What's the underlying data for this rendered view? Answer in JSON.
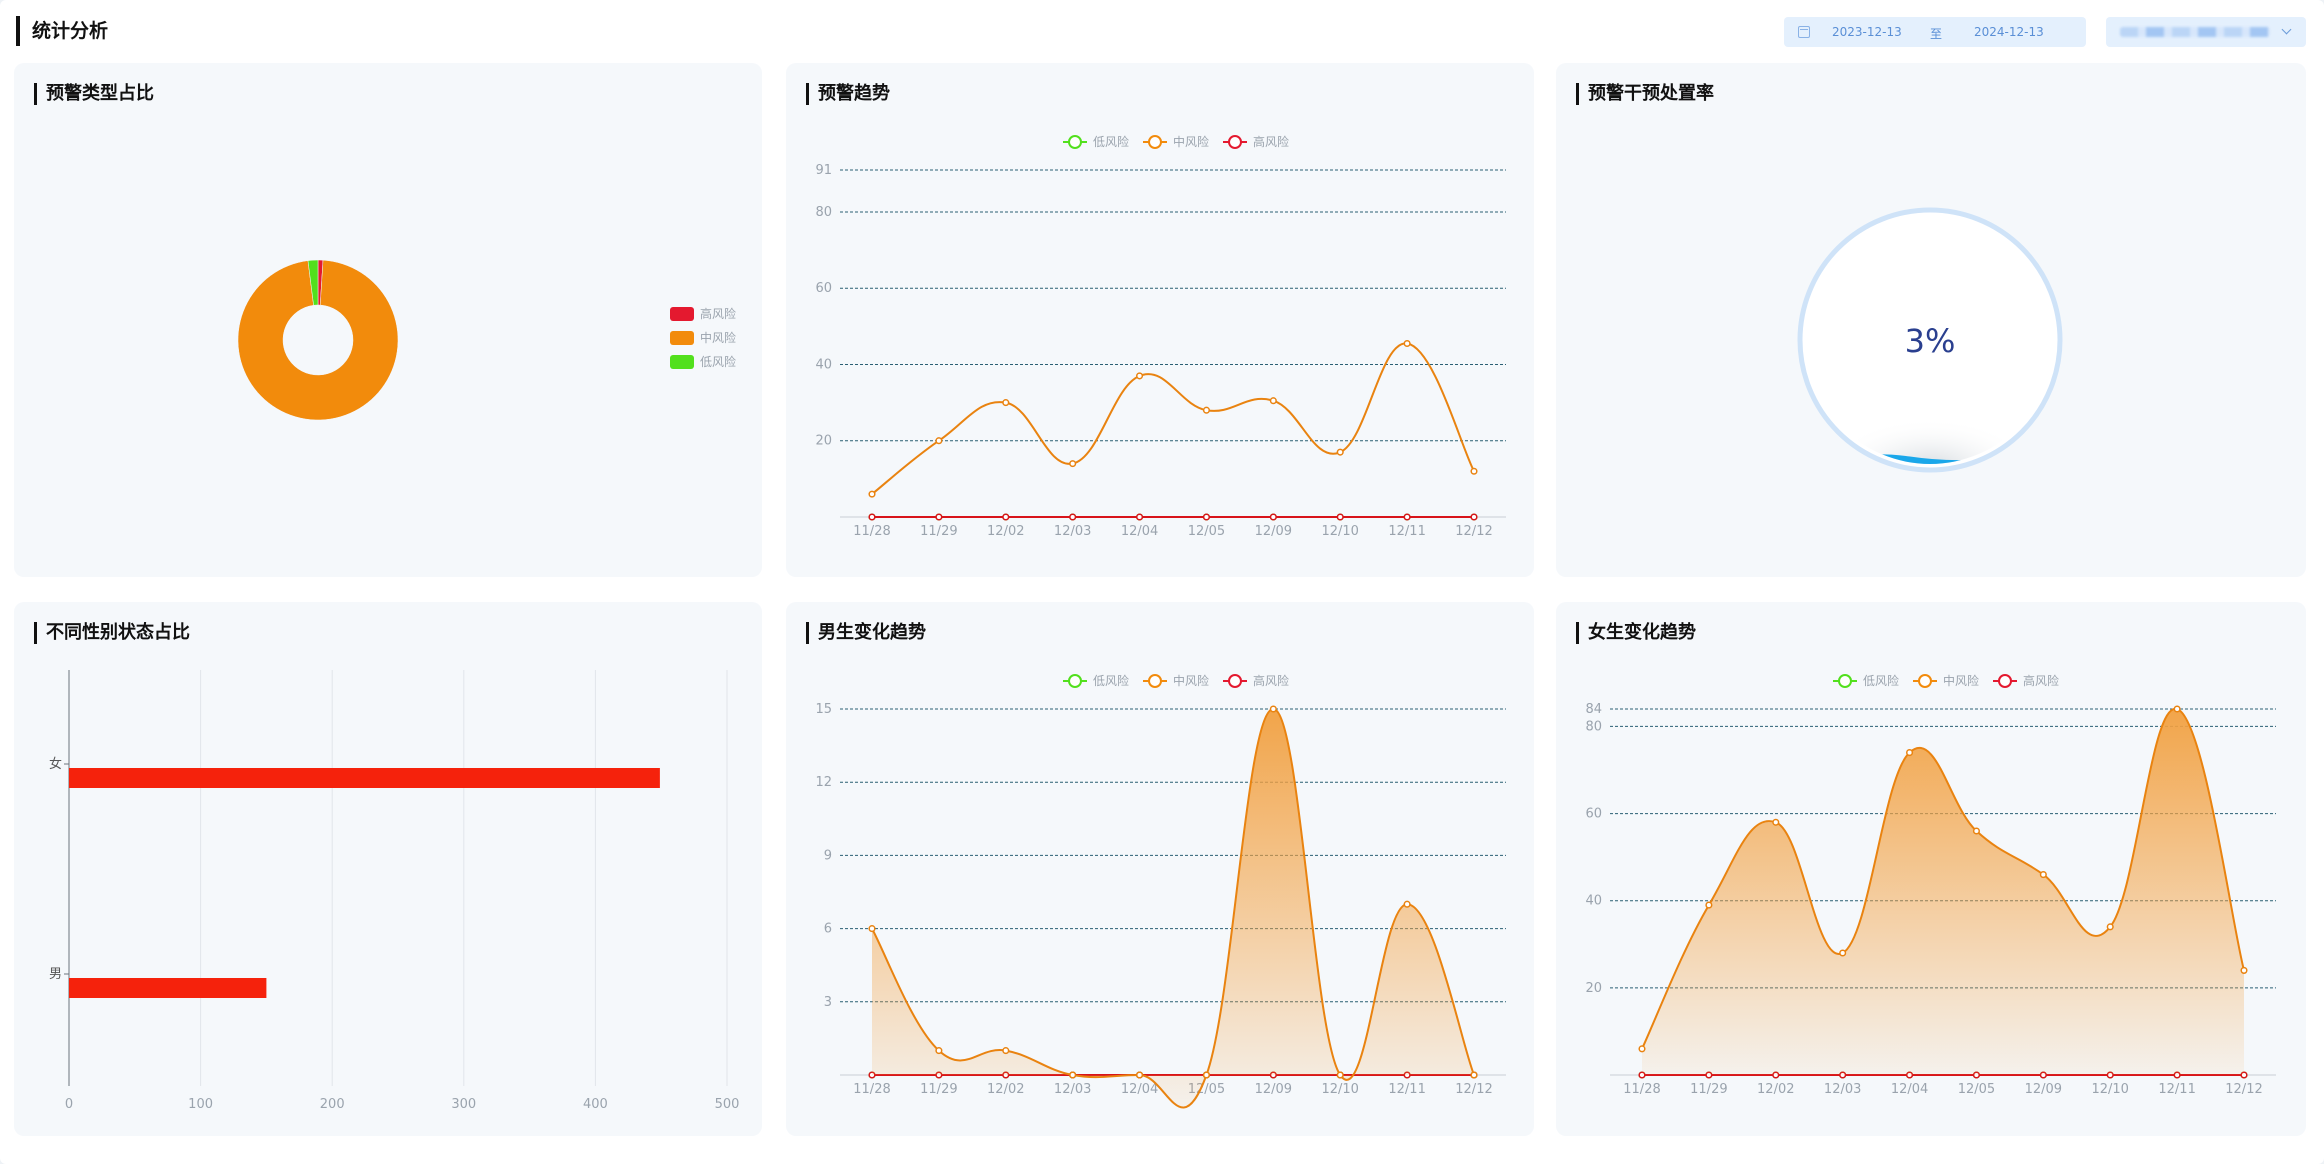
{
  "header": {
    "title": "统计分析",
    "date_start": "2023-12-13",
    "date_separator": "至",
    "date_end": "2024-12-13"
  },
  "panels": {
    "type_ratio": {
      "title": "预警类型占比"
    },
    "trend": {
      "title": "预警趋势"
    },
    "intervention": {
      "title": "预警干预处置率"
    },
    "gender": {
      "title": "不同性别状态占比"
    },
    "male": {
      "title": "男生变化趋势"
    },
    "female": {
      "title": "女生变化趋势"
    }
  },
  "colors": {
    "low": "#52e01d",
    "mid": "#f28b0c",
    "high": "#e4192f",
    "line_mid": "#e98310",
    "line_high": "#d8141a",
    "bar": "#f5220c"
  },
  "chart_data": [
    {
      "id": "type-ratio",
      "type": "pie",
      "labels": [
        "高风险",
        "中风险",
        "低风险"
      ],
      "values": [
        1,
        97,
        2
      ],
      "legend_position": "right"
    },
    {
      "id": "trend",
      "type": "line",
      "categories": [
        "11/28",
        "11/29",
        "12/02",
        "12/03",
        "12/04",
        "12/05",
        "12/09",
        "12/10",
        "12/11",
        "12/12"
      ],
      "series": [
        {
          "name": "低风险",
          "values": [
            0,
            0,
            0,
            0,
            0,
            0,
            0,
            0,
            0,
            0
          ]
        },
        {
          "name": "中风险",
          "values": [
            6,
            20,
            30,
            14,
            37,
            28,
            30.5,
            17,
            45.5,
            12
          ]
        },
        {
          "name": "高风险",
          "values": [
            0,
            0,
            0,
            0,
            0,
            0,
            0,
            0,
            0,
            0
          ]
        }
      ],
      "yticks": [
        20,
        40,
        60,
        80,
        91
      ],
      "ylim": [
        0,
        91
      ],
      "grid": true,
      "legend_position": "top"
    },
    {
      "id": "intervention",
      "type": "gauge",
      "value_label": "3%",
      "value": 0.03
    },
    {
      "id": "gender",
      "type": "bar",
      "orientation": "horizontal",
      "categories": [
        "女",
        "男"
      ],
      "values": [
        449,
        150
      ],
      "xticks": [
        0,
        100,
        200,
        300,
        400,
        500
      ],
      "xlim": [
        0,
        500
      ]
    },
    {
      "id": "male",
      "type": "area",
      "categories": [
        "11/28",
        "11/29",
        "12/02",
        "12/03",
        "12/04",
        "12/05",
        "12/09",
        "12/10",
        "12/11",
        "12/12"
      ],
      "series": [
        {
          "name": "低风险",
          "values": [
            0,
            0,
            0,
            0,
            0,
            0,
            0,
            0,
            0,
            0
          ]
        },
        {
          "name": "中风险",
          "values": [
            6,
            1,
            1,
            0,
            0,
            0,
            15,
            0,
            7,
            0
          ]
        },
        {
          "name": "高风险",
          "values": [
            0,
            0,
            0,
            0,
            0,
            0,
            0,
            0,
            0,
            0
          ]
        }
      ],
      "yticks": [
        3,
        6,
        9,
        12,
        15
      ],
      "ylim": [
        0,
        15
      ],
      "grid": true,
      "legend_position": "top"
    },
    {
      "id": "female",
      "type": "area",
      "categories": [
        "11/28",
        "11/29",
        "12/02",
        "12/03",
        "12/04",
        "12/05",
        "12/09",
        "12/10",
        "12/11",
        "12/12"
      ],
      "series": [
        {
          "name": "低风险",
          "values": [
            0,
            0,
            0,
            0,
            0,
            0,
            0,
            0,
            0,
            0
          ]
        },
        {
          "name": "中风险",
          "values": [
            6,
            39,
            58,
            28,
            74,
            56,
            46,
            34,
            84,
            24
          ]
        },
        {
          "name": "高风险",
          "values": [
            0,
            0,
            0,
            0,
            0,
            0,
            0,
            0,
            0,
            0
          ]
        }
      ],
      "yticks": [
        20,
        40,
        60,
        80,
        84
      ],
      "ylim": [
        0,
        84
      ],
      "grid": true,
      "legend_position": "top"
    }
  ]
}
